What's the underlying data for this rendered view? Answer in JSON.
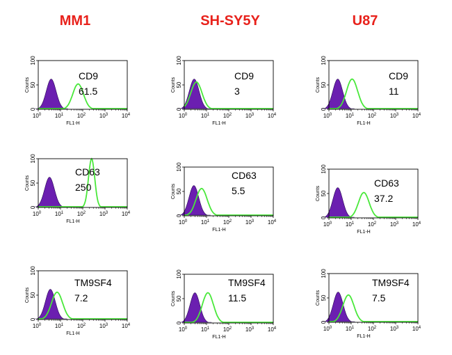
{
  "columns": [
    "MM1",
    "SH-SY5Y",
    "U87"
  ],
  "colors": {
    "title": "#e8211b",
    "isotype_fill": "#6b1fb0",
    "marker_line": "#49e83a",
    "axis": "#000000"
  },
  "axes": {
    "xlabel": "FL1-H",
    "ylabel": "Counts",
    "x_ticks": [
      "0",
      "1",
      "2",
      "3",
      "4"
    ],
    "x_tick_base": "10",
    "y_ticks": [
      "0",
      "50",
      "100"
    ]
  },
  "chart_data": [
    {
      "type": "area",
      "column": "MM1",
      "marker": "CD9",
      "value": "61.5",
      "x_scale": "log",
      "xlim": [
        1,
        10000
      ],
      "ylim": [
        0,
        100
      ],
      "isotype_peak": 3.8,
      "marker_peak": 62
    },
    {
      "type": "area",
      "column": "SH-SY5Y",
      "marker": "CD9",
      "value": "3",
      "x_scale": "log",
      "xlim": [
        1,
        10000
      ],
      "ylim": [
        0,
        100
      ],
      "isotype_peak": 2.8,
      "marker_peak": 3.5
    },
    {
      "type": "area",
      "column": "U87",
      "marker": "CD9",
      "value": "11",
      "x_scale": "log",
      "xlim": [
        1,
        10000
      ],
      "ylim": [
        0,
        100
      ],
      "isotype_peak": 2.5,
      "marker_peak": 11
    },
    {
      "type": "area",
      "column": "MM1",
      "marker": "CD63",
      "value": "250",
      "x_scale": "log",
      "xlim": [
        1,
        10000
      ],
      "ylim": [
        0,
        100
      ],
      "isotype_peak": 3.2,
      "marker_peak": 250
    },
    {
      "type": "area",
      "column": "SH-SY5Y",
      "marker": "CD63",
      "value": "5.5",
      "x_scale": "log",
      "xlim": [
        1,
        10000
      ],
      "ylim": [
        0,
        100
      ],
      "isotype_peak": 2.7,
      "marker_peak": 6
    },
    {
      "type": "area",
      "column": "U87",
      "marker": "CD63",
      "value": "37.2",
      "x_scale": "log",
      "xlim": [
        1,
        10000
      ],
      "ylim": [
        0,
        100
      ],
      "isotype_peak": 2.5,
      "marker_peak": 37
    },
    {
      "type": "area",
      "column": "MM1",
      "marker": "TM9SF4",
      "value": "7.2",
      "x_scale": "log",
      "xlim": [
        1,
        10000
      ],
      "ylim": [
        0,
        100
      ],
      "isotype_peak": 3.5,
      "marker_peak": 7
    },
    {
      "type": "area",
      "column": "SH-SY5Y",
      "marker": "TM9SF4",
      "value": "11.5",
      "x_scale": "log",
      "xlim": [
        1,
        10000
      ],
      "ylim": [
        0,
        100
      ],
      "isotype_peak": 3.0,
      "marker_peak": 11.5
    },
    {
      "type": "area",
      "column": "U87",
      "marker": "TM9SF4",
      "value": "7.5",
      "x_scale": "log",
      "xlim": [
        1,
        10000
      ],
      "ylim": [
        0,
        100
      ],
      "isotype_peak": 2.6,
      "marker_peak": 7.5
    }
  ]
}
